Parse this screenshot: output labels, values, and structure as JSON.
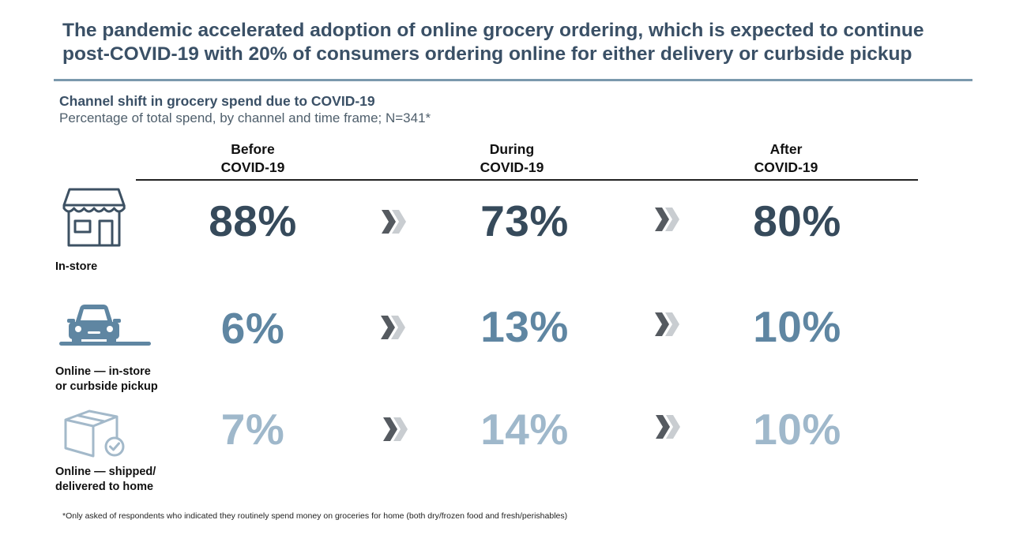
{
  "headline": {
    "line1": "The pandemic accelerated adoption of online grocery ordering, which is expected to continue",
    "line2": "post-COVID-19 with 20% of consumers ordering online for either delivery or curbside pickup"
  },
  "chart_data": {
    "type": "table",
    "title": "Channel shift in grocery spend due to COVID-19",
    "subtitle": "Percentage of total spend, by channel and time frame; N=341*",
    "columns": [
      {
        "line1": "Before",
        "line2": "COVID-19"
      },
      {
        "line1": "During",
        "line2": "COVID-19"
      },
      {
        "line1": "After",
        "line2": "COVID-19"
      }
    ],
    "rows": [
      {
        "label_line1": "In-store",
        "label_line2": "",
        "icon": "storefront-icon",
        "color": "#364a5b",
        "values": [
          88,
          73,
          80
        ],
        "display": [
          "88%",
          "73%",
          "80%"
        ]
      },
      {
        "label_line1": "Online — in-store",
        "label_line2": "or curbside pickup",
        "icon": "car-icon",
        "color": "#5f86a2",
        "values": [
          6,
          13,
          10
        ],
        "display": [
          "6%",
          "13%",
          "10%"
        ]
      },
      {
        "label_line1": "Online — shipped/",
        "label_line2": "delivered to home",
        "icon": "package-check-icon",
        "color": "#9fb8cb",
        "values": [
          7,
          14,
          10
        ],
        "display": [
          "7%",
          "14%",
          "10%"
        ]
      }
    ],
    "footnote": "*Only asked of respondents who indicated they routinely spend money on groceries for home (both dry/frozen food and fresh/perishables)"
  }
}
